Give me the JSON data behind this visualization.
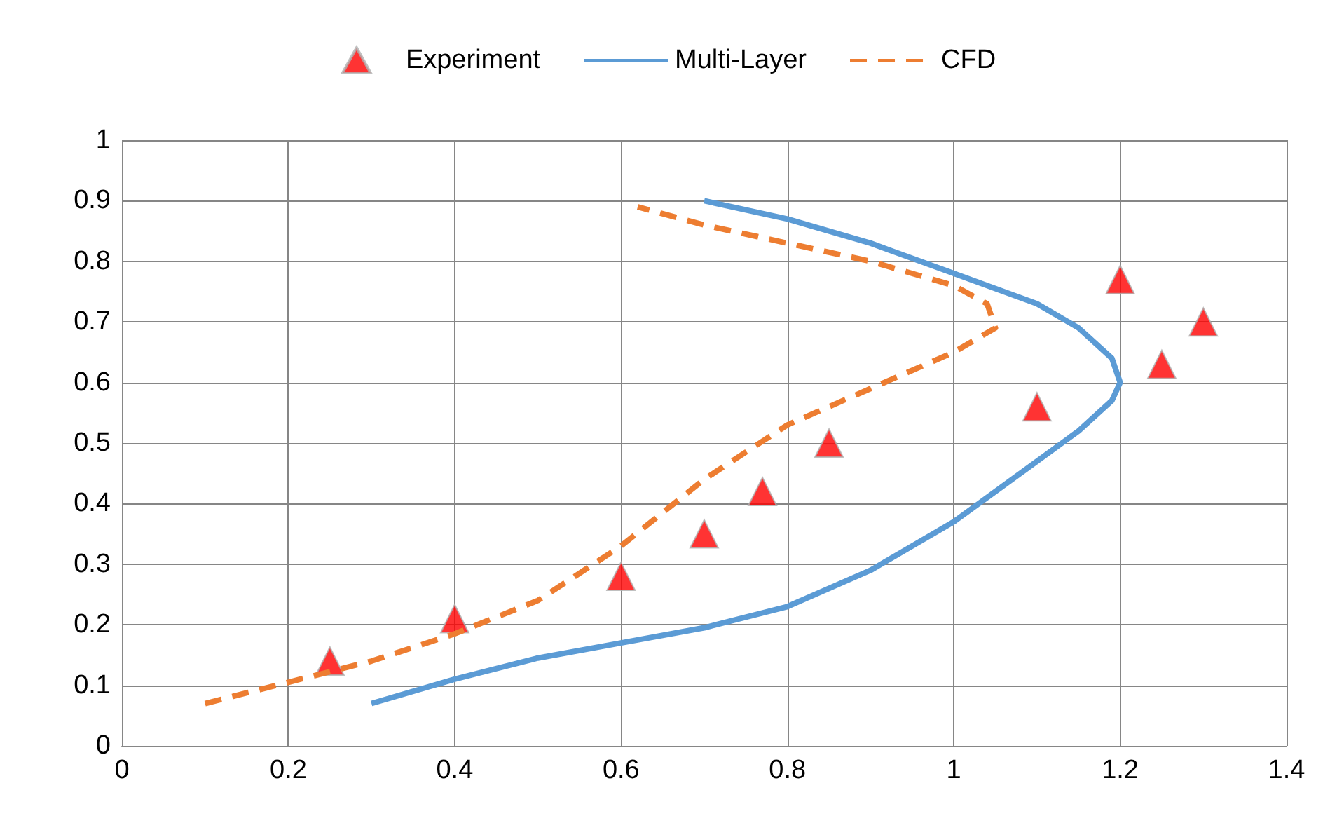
{
  "chart_data": {
    "type": "line",
    "legend": "top",
    "grid": true,
    "xlim": [
      0,
      1.4
    ],
    "xticks": [
      0,
      0.2,
      0.4,
      0.6,
      0.8,
      1,
      1.2,
      1.4
    ],
    "ylim": [
      0,
      1
    ],
    "yticks": [
      0,
      0.1,
      0.2,
      0.3,
      0.4,
      0.5,
      0.6,
      0.7,
      0.8,
      0.9,
      1
    ],
    "series": [
      {
        "name": "Experiment",
        "type": "scatter",
        "marker": "triangle",
        "color": "#ff0000",
        "x": [
          0.25,
          0.4,
          0.6,
          0.7,
          0.77,
          0.85,
          1.1,
          1.2,
          1.25,
          1.3
        ],
        "values": [
          0.14,
          0.21,
          0.28,
          0.35,
          0.42,
          0.5,
          0.56,
          0.77,
          0.63,
          0.7
        ]
      },
      {
        "name": "Multi-Layer",
        "marker": "none",
        "line_style": "solid",
        "color": "#5b9bd5",
        "x": [
          0.3,
          0.4,
          0.5,
          0.6,
          0.7,
          0.8,
          0.9,
          1.0,
          1.1,
          1.15,
          1.19,
          1.2,
          1.19,
          1.15,
          1.1,
          1.0,
          0.9,
          0.8,
          0.7
        ],
        "values": [
          0.07,
          0.11,
          0.145,
          0.17,
          0.195,
          0.23,
          0.29,
          0.37,
          0.47,
          0.52,
          0.57,
          0.6,
          0.64,
          0.69,
          0.73,
          0.78,
          0.83,
          0.87,
          0.9
        ]
      },
      {
        "name": "CFD",
        "marker": "none",
        "line_style": "dashed",
        "color": "#ed7d31",
        "x": [
          0.1,
          0.2,
          0.3,
          0.4,
          0.5,
          0.6,
          0.7,
          0.8,
          0.9,
          1.0,
          1.05,
          1.04,
          1.0,
          0.9,
          0.8,
          0.7,
          0.62
        ],
        "values": [
          0.07,
          0.105,
          0.14,
          0.185,
          0.24,
          0.33,
          0.44,
          0.53,
          0.59,
          0.65,
          0.69,
          0.73,
          0.76,
          0.8,
          0.83,
          0.86,
          0.89
        ]
      }
    ]
  }
}
